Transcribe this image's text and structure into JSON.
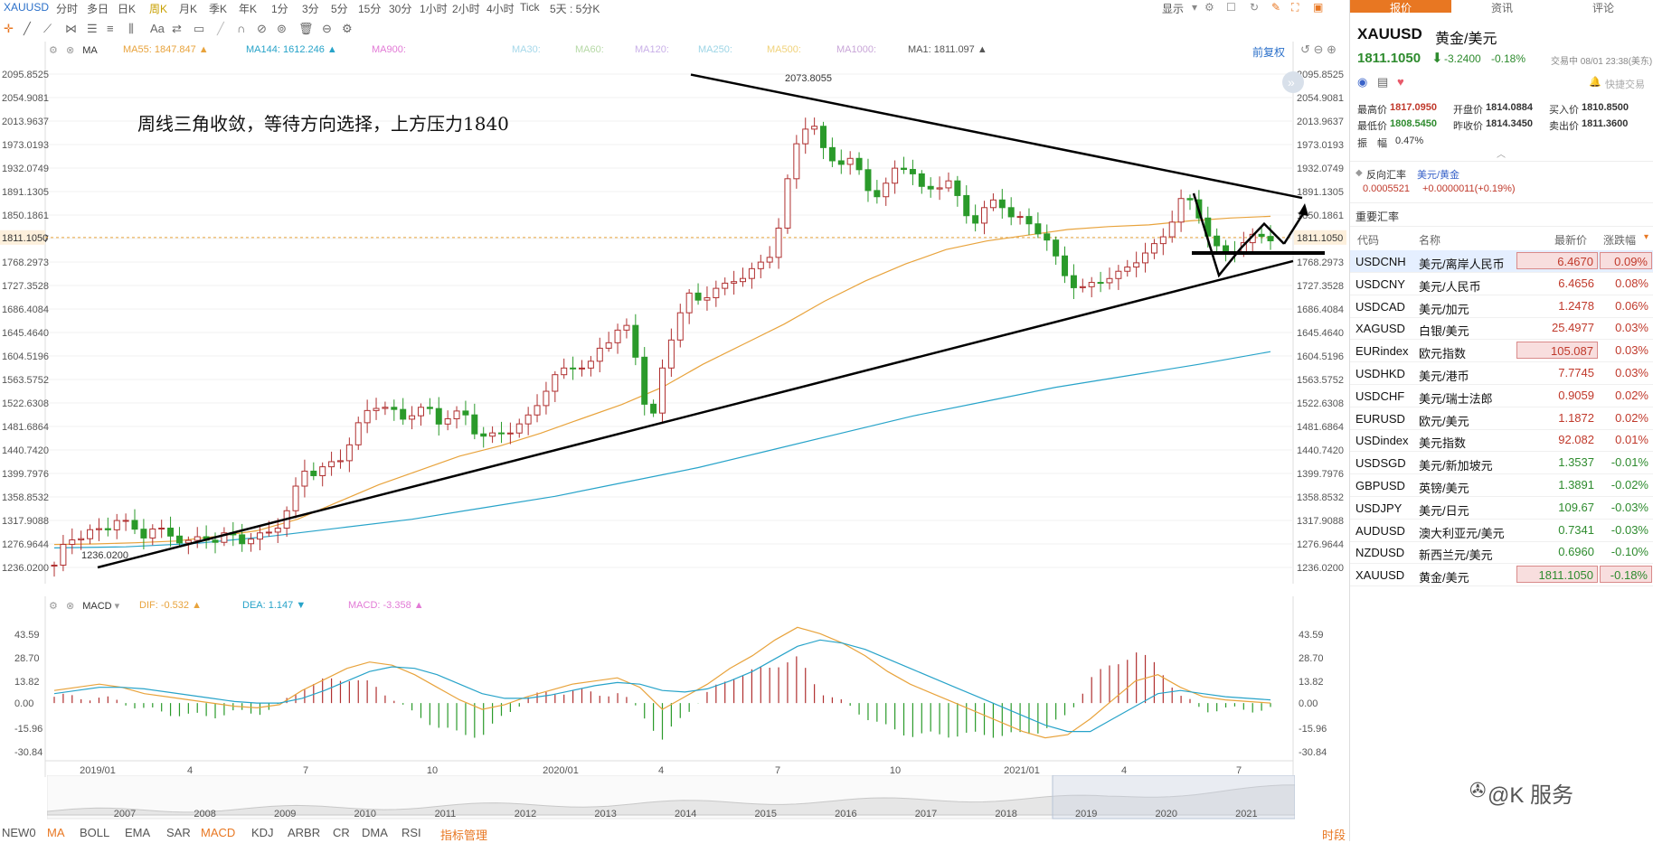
{
  "topbar": {
    "symbol": "XAUUSD",
    "timeframes": [
      "分时",
      "多日",
      "日K",
      "周K",
      "月K",
      "季K",
      "年K",
      "1分",
      "3分",
      "5分",
      "15分",
      "30分",
      "1小时",
      "2小时",
      "4小时",
      "Tick",
      "5天 : 5分K"
    ],
    "active_timeframe": "周K",
    "display_label": "显示"
  },
  "toolbar": {
    "font_label": "Aa"
  },
  "main_legend": {
    "indicator": "MA",
    "items": [
      {
        "label": "MA55: 1847.847",
        "color": "#e8a33c",
        "arrow": "▲"
      },
      {
        "label": "MA144: 1612.246",
        "color": "#27a3c9",
        "arrow": "▲"
      },
      {
        "label": "MA900:",
        "color": "#e27ad6",
        "arrow": ""
      },
      {
        "label": "MA30:",
        "color": "#a6d8ea",
        "arrow": ""
      },
      {
        "label": "MA60:",
        "color": "#b6d9a6",
        "arrow": ""
      },
      {
        "label": "MA120:",
        "color": "#c9b0e8",
        "arrow": ""
      },
      {
        "label": "MA250:",
        "color": "#9dd5e6",
        "arrow": ""
      },
      {
        "label": "MA500:",
        "color": "#f0d27a",
        "arrow": ""
      },
      {
        "label": "MA1000:",
        "color": "#c9a6d8",
        "arrow": ""
      },
      {
        "label": "MA1: 1811.097",
        "color": "#555555",
        "arrow": "▲"
      }
    ],
    "adjust_label": "前复权"
  },
  "annotation": "周线三角收敛，等待方向选择，上方压力1840",
  "macd_legend": {
    "indicator": "MACD",
    "items": [
      {
        "label": "DIF: -0.532",
        "color": "#e8a33c",
        "arrow": "▲"
      },
      {
        "label": "DEA: 1.147",
        "color": "#27a3c9",
        "arrow": "▼"
      },
      {
        "label": "MACD: -3.358",
        "color": "#e27ad6",
        "arrow": "▲"
      }
    ]
  },
  "bottom_tabs": [
    "NEW0",
    "MA",
    "BOLL",
    "EMA",
    "SAR",
    "MACD",
    "KDJ",
    "ARBR",
    "CR",
    "DMA",
    "RSI",
    "指标管理"
  ],
  "bottom_active": [
    "MA",
    "MACD"
  ],
  "bottom_right_label": "时段",
  "right_panel": {
    "tabs": [
      "报价",
      "资讯",
      "评论"
    ],
    "active_tab": "报价",
    "symbol": "XAUUSD",
    "name": "黄金/美元",
    "price": "1811.1050",
    "change": "-3.2400",
    "change_pct": "-0.18%",
    "trade_time": "交易中 08/01 23:38(美东)",
    "quick_trade": "快捷交易",
    "stats": [
      {
        "label": "最高价",
        "value": "1817.0950"
      },
      {
        "label": "开盘价",
        "value": "1814.0884"
      },
      {
        "label": "买入价",
        "value": "1810.8500"
      },
      {
        "label": "最低价",
        "value": "1808.5450"
      },
      {
        "label": "昨收价",
        "value": "1814.3450"
      },
      {
        "label": "卖出价",
        "value": "1811.3600"
      }
    ],
    "amplitude_label": "振　幅",
    "amplitude": "0.47%",
    "reverse": {
      "label": "反向汇率",
      "name": "美元/黄金",
      "value": "0.0005521",
      "change": "+0.0000011(+0.19%)"
    },
    "section_title": "重要汇率",
    "columns": [
      "代码",
      "名称",
      "最新价",
      "涨跌幅"
    ],
    "rows": [
      {
        "code": "USDCNH",
        "name": "美元/离岸人民币",
        "price": "6.4670",
        "pct": "0.09%"
      },
      {
        "code": "USDCNY",
        "name": "美元/人民币",
        "price": "6.4656",
        "pct": "0.08%"
      },
      {
        "code": "USDCAD",
        "name": "美元/加元",
        "price": "1.2478",
        "pct": "0.06%"
      },
      {
        "code": "XAGUSD",
        "name": "白银/美元",
        "price": "25.4977",
        "pct": "0.03%"
      },
      {
        "code": "EURindex",
        "name": "欧元指数",
        "price": "105.087",
        "pct": "0.03%"
      },
      {
        "code": "USDHKD",
        "name": "美元/港币",
        "price": "7.7745",
        "pct": "0.03%"
      },
      {
        "code": "USDCHF",
        "name": "美元/瑞士法郎",
        "price": "0.9059",
        "pct": "0.02%"
      },
      {
        "code": "EURUSD",
        "name": "欧元/美元",
        "price": "1.1872",
        "pct": "0.02%"
      },
      {
        "code": "USDindex",
        "name": "美元指数",
        "price": "92.082",
        "pct": "0.01%"
      },
      {
        "code": "USDSGD",
        "name": "美元/新加坡元",
        "price": "1.3537",
        "pct": "-0.01%"
      },
      {
        "code": "GBPUSD",
        "name": "英镑/美元",
        "price": "1.3891",
        "pct": "-0.02%"
      },
      {
        "code": "USDJPY",
        "name": "美元/日元",
        "price": "109.67",
        "pct": "-0.03%"
      },
      {
        "code": "AUDUSD",
        "name": "澳大利亚元/美元",
        "price": "0.7341",
        "pct": "-0.03%"
      },
      {
        "code": "NZDUSD",
        "name": "新西兰元/美元",
        "price": "0.6960",
        "pct": "-0.10%"
      },
      {
        "code": "XAUUSD",
        "name": "黄金/美元",
        "price": "1811.1050",
        "pct": "-0.18%"
      }
    ],
    "watermark": "@K 服务"
  },
  "chart_data": [
    {
      "type": "candlestick",
      "ylim": [
        1236.02,
        2095.85
      ],
      "y_ticks": [
        "2095.8525",
        "2054.9081",
        "2013.9637",
        "1973.0193",
        "1932.0749",
        "1891.1305",
        "1850.1861",
        "1809.2417",
        "1768.2973",
        "1727.3528",
        "1686.4084",
        "1645.4640",
        "1604.5196",
        "1563.5752",
        "1522.6308",
        "1481.6864",
        "1440.7420",
        "1399.7976",
        "1358.8532",
        "1317.9088",
        "1276.9644",
        "1236.0200"
      ],
      "current_price_label": "1811.1050",
      "current_price": 1811.105,
      "x_labels": [
        "2019/01",
        "4",
        "7",
        "10",
        "2020/01",
        "4",
        "7",
        "10",
        "2021/01",
        "4",
        "7"
      ],
      "high_label": "2073.8055",
      "low_label": "1236.0200",
      "close_path": [
        1240,
        1282,
        1290,
        1300,
        1298,
        1322,
        1310,
        1290,
        1305,
        1295,
        1285,
        1280,
        1288,
        1284,
        1295,
        1282,
        1288,
        1292,
        1310,
        1342,
        1408,
        1400,
        1412,
        1425,
        1460,
        1505,
        1520,
        1512,
        1495,
        1508,
        1515,
        1490,
        1502,
        1505,
        1470,
        1462,
        1470,
        1478,
        1490,
        1525,
        1560,
        1580,
        1590,
        1580,
        1620,
        1640,
        1660,
        1595,
        1470,
        1580,
        1660,
        1710,
        1700,
        1720,
        1725,
        1740,
        1750,
        1765,
        1790,
        1900,
        1990,
        2020,
        1960,
        1940,
        1950,
        1920,
        1880,
        1900,
        1940,
        1930,
        1890,
        1900,
        1910,
        1870,
        1835,
        1860,
        1880,
        1850,
        1840,
        1830,
        1805,
        1760,
        1730,
        1720,
        1735,
        1742,
        1748,
        1770,
        1785,
        1800,
        1840,
        1885,
        1860,
        1815,
        1780,
        1790,
        1805,
        1815,
        1811
      ],
      "ma55_path": [
        1276,
        1277,
        1279,
        1282,
        1290,
        1300,
        1320,
        1350,
        1380,
        1405,
        1430,
        1448,
        1470,
        1495,
        1520,
        1550,
        1590,
        1625,
        1660,
        1700,
        1735,
        1765,
        1790,
        1805,
        1815,
        1825,
        1830,
        1833,
        1840,
        1845,
        1848
      ],
      "ma144_path": [
        1270,
        1272,
        1278,
        1290,
        1305,
        1320,
        1340,
        1360,
        1385,
        1410,
        1440,
        1470,
        1500,
        1525,
        1550,
        1570,
        1590,
        1612
      ]
    },
    {
      "type": "bar",
      "name": "MACD",
      "ylim": [
        -30.84,
        43.59
      ],
      "y_ticks": [
        "43.59",
        "28.70",
        "13.82",
        "0.00",
        "-15.96",
        "-30.84"
      ],
      "dif_path": [
        8,
        10,
        12,
        10,
        6,
        4,
        2,
        0,
        -2,
        -3,
        -1,
        8,
        15,
        22,
        26,
        24,
        18,
        10,
        2,
        -4,
        -1,
        4,
        8,
        12,
        14,
        16,
        10,
        -4,
        4,
        12,
        22,
        30,
        40,
        48,
        44,
        38,
        30,
        20,
        12,
        6,
        0,
        -6,
        -12,
        -18,
        -22,
        -20,
        -10,
        2,
        14,
        18,
        10,
        4,
        2,
        1,
        0
      ],
      "dea_path": [
        6,
        8,
        10,
        10,
        9,
        7,
        5,
        3,
        1,
        0,
        0,
        3,
        8,
        14,
        20,
        23,
        22,
        18,
        12,
        6,
        3,
        3,
        5,
        8,
        11,
        13,
        12,
        8,
        7,
        9,
        14,
        20,
        28,
        36,
        40,
        38,
        34,
        28,
        22,
        16,
        10,
        4,
        -2,
        -8,
        -14,
        -18,
        -18,
        -10,
        -2,
        6,
        8,
        6,
        4,
        3,
        2
      ],
      "histogram_path": [
        4,
        4,
        3,
        1,
        -4,
        -6,
        -8,
        -8,
        -6,
        -6,
        -2,
        10,
        14,
        16,
        12,
        4,
        -8,
        -14,
        -20,
        -20,
        -8,
        4,
        6,
        8,
        6,
        6,
        -4,
        -24,
        -6,
        6,
        16,
        20,
        24,
        28,
        8,
        0,
        -8,
        -16,
        -20,
        -20,
        -20,
        -20,
        -20,
        -20,
        -16,
        -8,
        16,
        24,
        32,
        24,
        4,
        -4,
        -4,
        -4,
        -4
      ]
    },
    {
      "type": "area",
      "name": "overview",
      "x_labels": [
        "2007",
        "2008",
        "2009",
        "2010",
        "2011",
        "2012",
        "2013",
        "2014",
        "2015",
        "2016",
        "2017",
        "2018",
        "2019",
        "2020",
        "2021"
      ]
    }
  ]
}
